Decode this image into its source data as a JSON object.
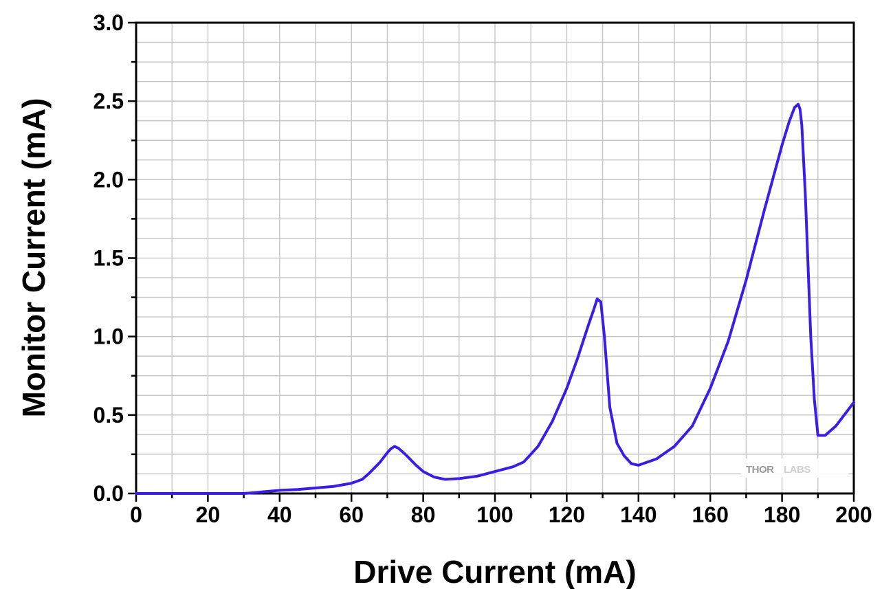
{
  "chart_data": {
    "type": "line",
    "xlabel": "Drive Current (mA)",
    "ylabel": "Monitor Current (mA)",
    "xlim": [
      0,
      200
    ],
    "ylim": [
      0,
      3.0
    ],
    "x_ticks": [
      "0",
      "20",
      "40",
      "60",
      "80",
      "100",
      "120",
      "140",
      "160",
      "180",
      "200"
    ],
    "y_ticks": [
      "0.0",
      "0.5",
      "1.0",
      "1.5",
      "2.0",
      "2.5",
      "3.0"
    ],
    "grid": true,
    "series": [
      {
        "color": "#3b1ee6",
        "x": [
          0,
          10,
          20,
          30,
          33,
          36,
          40,
          45,
          50,
          55,
          60,
          63,
          65,
          68,
          70,
          71,
          72,
          73,
          75,
          78,
          80,
          83,
          86,
          90,
          95,
          100,
          105,
          108,
          112,
          116,
          120,
          123,
          126,
          127.5,
          128.5,
          129.5,
          130.5,
          132,
          134,
          136,
          138,
          140,
          145,
          150,
          155,
          160,
          165,
          170,
          175,
          180,
          182,
          183.5,
          184.5,
          185,
          185.5,
          186.5,
          188,
          189,
          190,
          192,
          195,
          198,
          200
        ],
        "y": [
          0.0,
          0.0,
          0.0,
          0.0,
          0.005,
          0.012,
          0.02,
          0.025,
          0.035,
          0.045,
          0.065,
          0.09,
          0.13,
          0.2,
          0.26,
          0.285,
          0.3,
          0.29,
          0.25,
          0.18,
          0.14,
          0.105,
          0.09,
          0.095,
          0.11,
          0.14,
          0.17,
          0.2,
          0.3,
          0.46,
          0.67,
          0.86,
          1.07,
          1.17,
          1.24,
          1.22,
          1.0,
          0.55,
          0.32,
          0.24,
          0.19,
          0.18,
          0.22,
          0.3,
          0.43,
          0.67,
          0.97,
          1.36,
          1.8,
          2.22,
          2.37,
          2.46,
          2.48,
          2.45,
          2.35,
          1.9,
          1.0,
          0.6,
          0.37,
          0.37,
          0.43,
          0.52,
          0.58
        ]
      }
    ]
  },
  "watermark": {
    "logo_text": "THORLABS"
  }
}
